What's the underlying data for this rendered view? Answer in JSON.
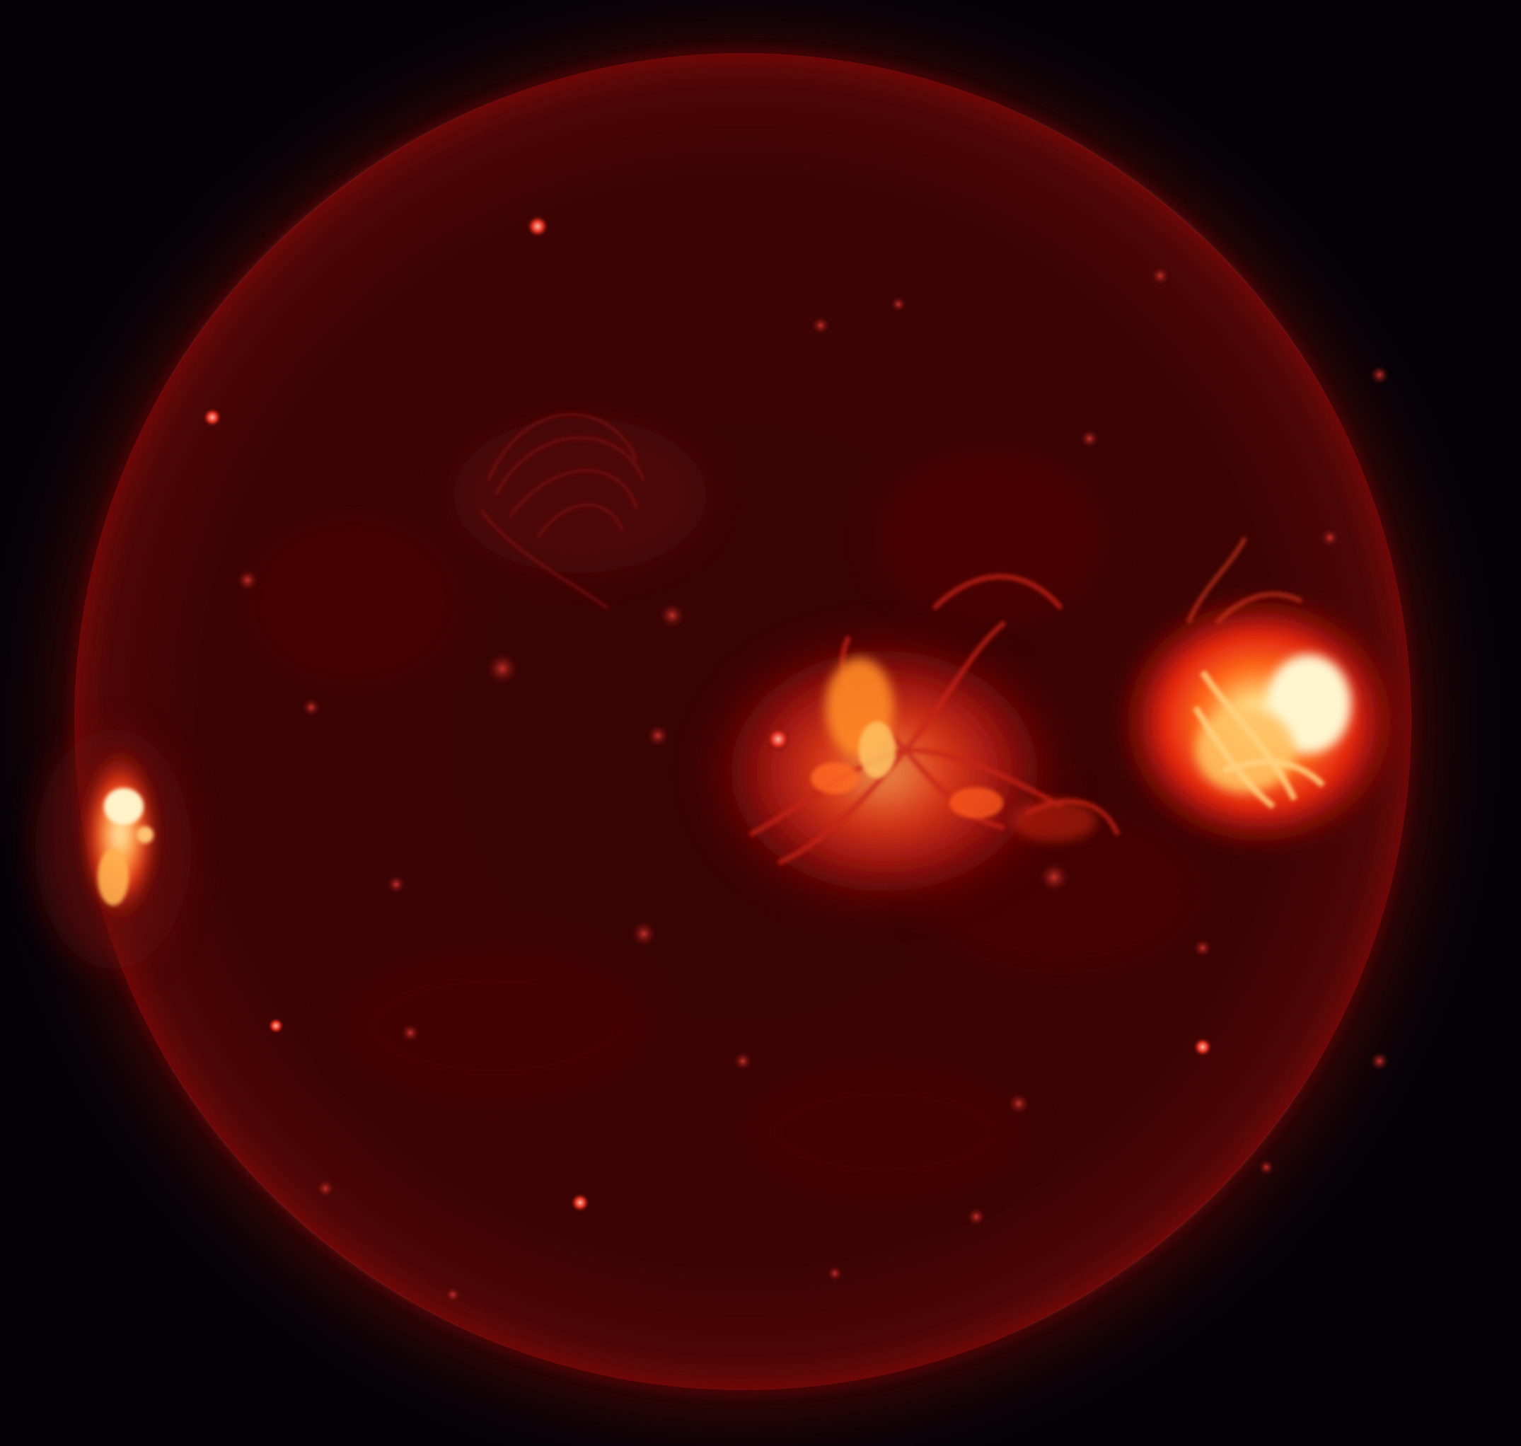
{
  "scene": {
    "subject": "sun-disk",
    "colors": {
      "background": "#050207",
      "corona_outer": "#3a0606",
      "disk_base": "#3d0303",
      "disk_limb": "#5c0808",
      "active_region_mid": "#d2200f",
      "active_region_hot": "#ff9a2a",
      "active_region_core": "#fff4c8"
    },
    "features": [
      {
        "name": "active-region-east-limb",
        "brightness": "high"
      },
      {
        "name": "active-region-central",
        "brightness": "medium"
      },
      {
        "name": "active-region-west",
        "brightness": "very-high"
      },
      {
        "name": "loop-arcade-northeast",
        "brightness": "low"
      },
      {
        "name": "bright-points",
        "brightness": "low"
      }
    ]
  }
}
